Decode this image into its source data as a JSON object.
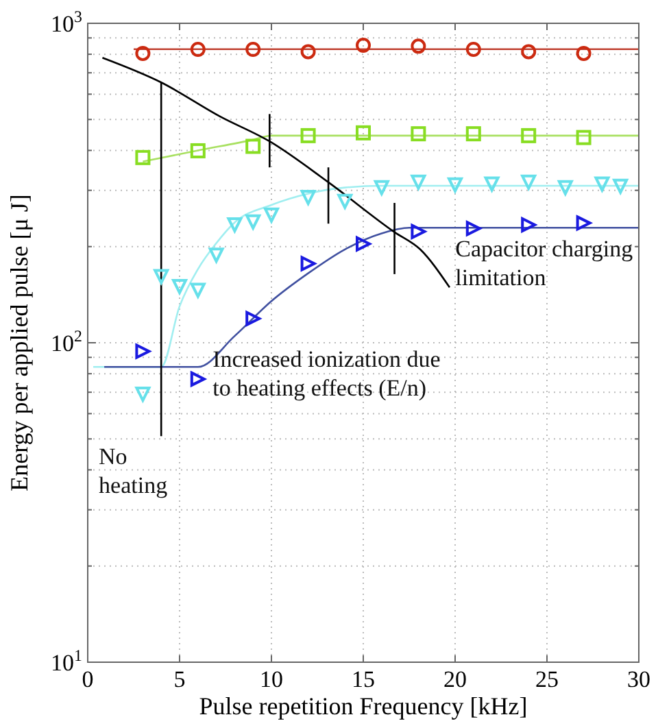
{
  "chart_data": {
    "type": "scatter",
    "xlabel": "Pulse repetition Frequency [kHz]",
    "ylabel": "Energy per applied pulse [μ J]",
    "log": "y",
    "grid": true,
    "xlim": [
      0,
      30
    ],
    "xticks": [
      0,
      5,
      10,
      15,
      20,
      25,
      30
    ],
    "ylim": [
      10,
      1000
    ],
    "yticks": [
      {
        "value": 10,
        "label": "10$^{1}$"
      },
      {
        "value": 20,
        "label": null
      },
      {
        "value": 30,
        "label": null
      },
      {
        "value": 40,
        "label": null
      },
      {
        "value": 50,
        "label": null
      },
      {
        "value": 60,
        "label": null
      },
      {
        "value": 70,
        "label": null
      },
      {
        "value": 80,
        "label": null
      },
      {
        "value": 90,
        "label": null
      },
      {
        "value": 100,
        "label": "10$^{2}$"
      },
      {
        "value": 200,
        "label": null
      },
      {
        "value": 300,
        "label": null
      },
      {
        "value": 400,
        "label": null
      },
      {
        "value": 500,
        "label": null
      },
      {
        "value": 600,
        "label": null
      },
      {
        "value": 700,
        "label": null
      },
      {
        "value": 800,
        "label": null
      },
      {
        "value": 900,
        "label": null
      },
      {
        "value": 1000,
        "label": "10$^{3}$"
      }
    ],
    "series": [
      {
        "type": "line",
        "color": "#c04030",
        "marker": "none",
        "x": [
          2.5,
          30
        ],
        "values": [
          830,
          830
        ]
      },
      {
        "type": "line",
        "color": "#a8e060",
        "marker": "none",
        "x": [
          3,
          6,
          9,
          10,
          30
        ],
        "values": [
          369,
          400,
          432,
          445,
          445
        ]
      },
      {
        "type": "line",
        "color": "#a0eef0",
        "marker": "none",
        "x": [
          0.3,
          4,
          5,
          6,
          7,
          8,
          10,
          12,
          14,
          16,
          30
        ],
        "values": [
          84,
          84,
          130,
          170,
          205,
          238,
          270,
          293,
          306,
          310,
          310
        ]
      },
      {
        "type": "line",
        "color": "#4050a0",
        "marker": "none",
        "x": [
          0.9,
          6,
          8,
          10,
          12,
          14,
          16,
          17.5,
          30
        ],
        "values": [
          84,
          84,
          105,
          135,
          165,
          196,
          220,
          229,
          229
        ]
      },
      {
        "type": "line",
        "color": "#000000",
        "marker": "none",
        "x": [
          0.8,
          4,
          7.2,
          9.9,
          13.1,
          16.7,
          18.1,
          19.7
        ],
        "values": [
          780,
          653,
          511,
          427,
          318,
          222,
          196,
          149
        ]
      },
      {
        "type": "line",
        "color": "#000000",
        "marker": "none",
        "x": [
          4,
          4
        ],
        "values": [
          653,
          51
        ]
      },
      {
        "type": "line",
        "color": "#000000",
        "marker": "none",
        "x": [
          9.9,
          9.9
        ],
        "values": [
          520,
          354
        ]
      },
      {
        "type": "line",
        "color": "#000000",
        "marker": "none",
        "x": [
          13.1,
          13.1
        ],
        "values": [
          354,
          236
        ]
      },
      {
        "type": "line",
        "color": "#000000",
        "marker": "none",
        "x": [
          16.7,
          16.7
        ],
        "values": [
          274,
          164
        ]
      },
      {
        "color": "#cc2a10",
        "marker": "circle",
        "x": [
          3,
          6,
          9,
          12,
          15,
          18,
          21,
          24,
          27
        ],
        "values": [
          805,
          829,
          829,
          815,
          854,
          848,
          829,
          815,
          805
        ]
      },
      {
        "color": "#88dd22",
        "marker": "square",
        "x": [
          3,
          6,
          9,
          12,
          15,
          18,
          21,
          24,
          27
        ],
        "values": [
          380,
          399,
          412,
          445,
          454,
          451,
          451,
          445,
          439
        ]
      },
      {
        "color": "#66e0ea",
        "marker": "triangle-down",
        "x": [
          3,
          4,
          5,
          6,
          7,
          8,
          9,
          10,
          12,
          14,
          16,
          18,
          20,
          22,
          24,
          26,
          28,
          29
        ],
        "values": [
          69,
          161,
          150,
          146,
          188,
          234,
          239,
          251,
          285,
          277,
          306,
          318,
          312,
          314,
          318,
          306,
          314,
          309
        ]
      },
      {
        "color": "#1a1ae0",
        "marker": "triangle-right",
        "x": [
          3,
          6,
          9,
          12,
          15,
          18,
          21,
          24,
          27
        ],
        "values": [
          94,
          77,
          119,
          177,
          204,
          223,
          228,
          234,
          237
        ]
      }
    ],
    "annotations": [
      "Capacitor charging\nlimitation",
      {
        "text": "Increased ionization due\nto heating effects (E/n)",
        "x": 6.8,
        "y": 84
      },
      "No\nheating"
    ]
  }
}
